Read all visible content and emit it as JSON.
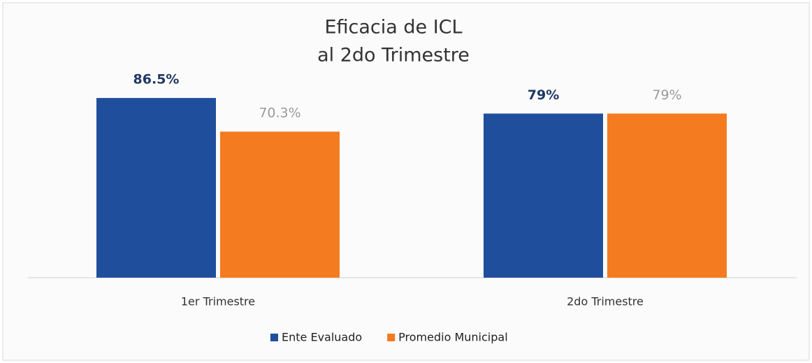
{
  "chart_data": {
    "type": "bar",
    "title": [
      "Eficacia  de ICL",
      "al 2do Trimestre"
    ],
    "categories": [
      "1er Trimestre",
      "2do Trimestre"
    ],
    "series": [
      {
        "name": "Ente Evaluado",
        "color": "#1f4e9c",
        "label_color": "#1f3864",
        "values": [
          86.5,
          79
        ],
        "value_labels": [
          "86.5%",
          "79%"
        ]
      },
      {
        "name": "Promedio Municipal",
        "color": "#f47b20",
        "label_color": "#9a9a9a",
        "values": [
          70.3,
          79
        ],
        "value_labels": [
          "70.3%",
          "79%"
        ]
      }
    ],
    "ylim": [
      0,
      100
    ],
    "grid": false,
    "legend": "bottom"
  }
}
